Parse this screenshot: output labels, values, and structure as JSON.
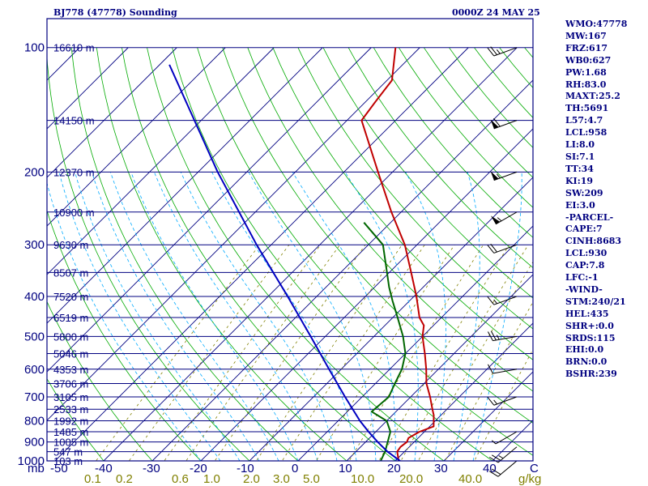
{
  "title_left": "BJ778 (47778) Sounding",
  "title_right": "0000Z 24 MAY 25",
  "indices": [
    "WMO:47778",
    "MW:167",
    "FRZ:617",
    "WB0:627",
    "PW:1.68",
    "RH:83.0",
    "MAXT:25.2",
    "TH:5691",
    "L57:4.7",
    "LCL:958",
    "LI:8.0",
    "SI:7.1",
    "TT:34",
    "KI:19",
    "SW:209",
    "EI:3.0",
    "-PARCEL-",
    "CAPE:7",
    "CINH:8683",
    "LCL:930",
    "CAP:7.8",
    "LFC:-1",
    "-WIND-",
    "STM:240/21",
    "HEL:435",
    "SHR+:0.0",
    "SRDS:115",
    "EHI:0.0",
    "BRN:0.0",
    "BSHR:239"
  ],
  "colors": {
    "frame": "#000080",
    "isobar": "#000080",
    "isotherm": "#000080",
    "dry_adiabat": "#00aa00",
    "moist_adiabat": "#00aaff",
    "mixing_ratio": "#808000",
    "temperature": "#c00000",
    "dewpoint": "#006600",
    "parcel": "#0000c0",
    "wind_barb": "#000000",
    "text": "#000080"
  },
  "chart_data": {
    "type": "line",
    "ylabel": "mb",
    "xunit": "C",
    "mixing_ratio_unit": "g/kg",
    "ylim": [
      1000,
      100
    ],
    "xlim": [
      -50,
      50
    ],
    "pressure_levels": [
      100,
      200,
      300,
      400,
      500,
      600,
      700,
      800,
      900,
      1000
    ],
    "pressure_tick_labels": [
      "100",
      "200",
      "300",
      "400",
      "500",
      "600",
      "700",
      "800",
      "900",
      "1000"
    ],
    "temperature_ticks": [
      -40,
      -30,
      -20,
      -10,
      0,
      10,
      20,
      30,
      40
    ],
    "temperature_tick_labels": [
      "-50",
      "-40",
      "-30",
      "-20",
      "-10",
      "0",
      "10",
      "20",
      "30",
      "40",
      "C"
    ],
    "mixing_ratio_ticks": [
      "0.1",
      "0.2",
      "0.6",
      "1.0",
      "2.0",
      "3.0",
      "5.0",
      "10.0",
      "20.0",
      "40.0",
      "g/kg"
    ],
    "height_labels": [
      {
        "p": 100,
        "text": "16610 m"
      },
      {
        "p": 150,
        "text": "14150 m"
      },
      {
        "p": 200,
        "text": "12370 m"
      },
      {
        "p": 250,
        "text": "10900 m"
      },
      {
        "p": 300,
        "text": "9630 m"
      },
      {
        "p": 350,
        "text": "8507 m"
      },
      {
        "p": 400,
        "text": "7520 m"
      },
      {
        "p": 450,
        "text": "6519 m"
      },
      {
        "p": 500,
        "text": "5800 m"
      },
      {
        "p": 550,
        "text": "5046 m"
      },
      {
        "p": 600,
        "text": "4353 m"
      },
      {
        "p": 650,
        "text": "3706 m"
      },
      {
        "p": 700,
        "text": "3105 m"
      },
      {
        "p": 750,
        "text": "2533 m"
      },
      {
        "p": 800,
        "text": "1992 m"
      },
      {
        "p": 850,
        "text": "1485 m"
      },
      {
        "p": 900,
        "text": "1005 m"
      },
      {
        "p": 950,
        "text": "547 m"
      },
      {
        "p": 1000,
        "text": "103 m"
      }
    ],
    "series": [
      {
        "name": "Temperature",
        "points": [
          {
            "p": 1000,
            "t": 20.7
          },
          {
            "p": 950,
            "t": 18.5
          },
          {
            "p": 925,
            "t": 18.2
          },
          {
            "p": 900,
            "t": 18.5
          },
          {
            "p": 880,
            "t": 18.0
          },
          {
            "p": 850,
            "t": 19.0
          },
          {
            "p": 825,
            "t": 20.8
          },
          {
            "p": 775,
            "t": 18.5
          },
          {
            "p": 750,
            "t": 17.0
          },
          {
            "p": 700,
            "t": 14.0
          },
          {
            "p": 650,
            "t": 10.5
          },
          {
            "p": 600,
            "t": 7.5
          },
          {
            "p": 550,
            "t": 4.0
          },
          {
            "p": 500,
            "t": 0.0
          },
          {
            "p": 470,
            "t": -2.0
          },
          {
            "p": 450,
            "t": -4.5
          },
          {
            "p": 400,
            "t": -9.5
          },
          {
            "p": 350,
            "t": -15.5
          },
          {
            "p": 300,
            "t": -22.5
          },
          {
            "p": 250,
            "t": -32.0
          },
          {
            "p": 200,
            "t": -43.0
          },
          {
            "p": 150,
            "t": -57.0
          },
          {
            "p": 135,
            "t": -58.0
          },
          {
            "p": 120,
            "t": -59.0
          },
          {
            "p": 100,
            "t": -65.0
          }
        ]
      },
      {
        "name": "Dewpoint",
        "points": [
          {
            "p": 1000,
            "t": 17.0
          },
          {
            "p": 950,
            "t": 16.0
          },
          {
            "p": 850,
            "t": 13.0
          },
          {
            "p": 800,
            "t": 10.0
          },
          {
            "p": 760,
            "t": 5.0
          },
          {
            "p": 700,
            "t": 5.5
          },
          {
            "p": 650,
            "t": 4.0
          },
          {
            "p": 600,
            "t": 2.5
          },
          {
            "p": 550,
            "t": 0.0
          },
          {
            "p": 500,
            "t": -4.0
          },
          {
            "p": 450,
            "t": -9.0
          },
          {
            "p": 410,
            "t": -13.5
          },
          {
            "p": 380,
            "t": -17.0
          },
          {
            "p": 300,
            "t": -27.0
          },
          {
            "p": 265,
            "t": -35.5
          }
        ]
      },
      {
        "name": "Parcel",
        "points": [
          {
            "p": 1000,
            "t": 21.0
          },
          {
            "p": 950,
            "t": 16.5
          },
          {
            "p": 900,
            "t": 12.5
          },
          {
            "p": 850,
            "t": 8.5
          },
          {
            "p": 800,
            "t": 4.5
          },
          {
            "p": 700,
            "t": -3.5
          },
          {
            "p": 600,
            "t": -12.5
          },
          {
            "p": 500,
            "t": -23.0
          },
          {
            "p": 400,
            "t": -36.0
          },
          {
            "p": 300,
            "t": -53.0
          },
          {
            "p": 200,
            "t": -76.0
          },
          {
            "p": 110,
            "t": -108.0
          }
        ]
      }
    ],
    "wind_barbs": [
      {
        "p": 1000,
        "dir": 230,
        "spd": 20
      },
      {
        "p": 925,
        "dir": 230,
        "spd": 25
      },
      {
        "p": 850,
        "dir": 240,
        "spd": 5
      },
      {
        "p": 700,
        "dir": 250,
        "spd": 15
      },
      {
        "p": 600,
        "dir": 260,
        "spd": 10
      },
      {
        "p": 500,
        "dir": 260,
        "spd": 25
      },
      {
        "p": 400,
        "dir": 250,
        "spd": 15
      },
      {
        "p": 300,
        "dir": 250,
        "spd": 20
      },
      {
        "p": 250,
        "dir": 240,
        "spd": 55
      },
      {
        "p": 200,
        "dir": 250,
        "spd": 55
      },
      {
        "p": 150,
        "dir": 250,
        "spd": 60
      },
      {
        "p": 100,
        "dir": 250,
        "spd": 25
      }
    ]
  }
}
